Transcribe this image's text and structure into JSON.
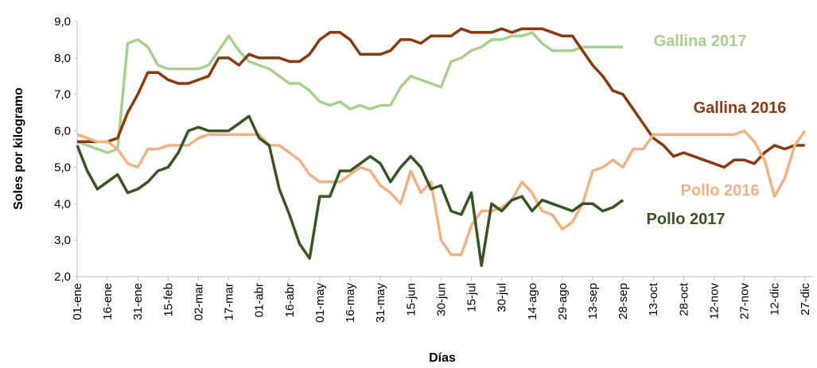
{
  "chart_data": {
    "type": "line",
    "x_label": "Días",
    "y_label": "Soles por kilogramo",
    "x": [
      1,
      6,
      11,
      16,
      21,
      26,
      31,
      36,
      41,
      46,
      51,
      56,
      61,
      66,
      71,
      76,
      81,
      86,
      91,
      96,
      101,
      106,
      111,
      116,
      121,
      126,
      131,
      136,
      141,
      146,
      151,
      156,
      161,
      166,
      171,
      176,
      181,
      186,
      191,
      196,
      201,
      206,
      211,
      216,
      221,
      226,
      231,
      236,
      241,
      246,
      251,
      256,
      261,
      266,
      271,
      276,
      281,
      286,
      291,
      296,
      301,
      306,
      311,
      316,
      321,
      326,
      331,
      336,
      341,
      346,
      351,
      356,
      361
    ],
    "xlim": [
      1,
      365
    ],
    "xticks": [
      {
        "value": 1,
        "label": "01-ene"
      },
      {
        "value": 16,
        "label": "16-ene"
      },
      {
        "value": 31,
        "label": "31-ene"
      },
      {
        "value": 46,
        "label": "15-feb"
      },
      {
        "value": 61,
        "label": "02-mar"
      },
      {
        "value": 76,
        "label": "17-mar"
      },
      {
        "value": 91,
        "label": "01-abr"
      },
      {
        "value": 106,
        "label": "16-abr"
      },
      {
        "value": 121,
        "label": "01-may"
      },
      {
        "value": 136,
        "label": "16-may"
      },
      {
        "value": 151,
        "label": "31-may"
      },
      {
        "value": 166,
        "label": "15-jun"
      },
      {
        "value": 181,
        "label": "30-jun"
      },
      {
        "value": 196,
        "label": "15-jul"
      },
      {
        "value": 211,
        "label": "30-jul"
      },
      {
        "value": 226,
        "label": "14-ago"
      },
      {
        "value": 241,
        "label": "29-ago"
      },
      {
        "value": 256,
        "label": "13-sep"
      },
      {
        "value": 271,
        "label": "28-sep"
      },
      {
        "value": 286,
        "label": "13-oct"
      },
      {
        "value": 301,
        "label": "28-oct"
      },
      {
        "value": 316,
        "label": "12-nov"
      },
      {
        "value": 331,
        "label": "27-nov"
      },
      {
        "value": 346,
        "label": "12-dic"
      },
      {
        "value": 361,
        "label": "27-dic"
      }
    ],
    "ylim": [
      2,
      9
    ],
    "yticks": [
      {
        "value": 2,
        "label": "2,0"
      },
      {
        "value": 3,
        "label": "3,0"
      },
      {
        "value": 4,
        "label": "4,0"
      },
      {
        "value": 5,
        "label": "5,0"
      },
      {
        "value": 6,
        "label": "6,0"
      },
      {
        "value": 7,
        "label": "7,0"
      },
      {
        "value": 8,
        "label": "8,0"
      },
      {
        "value": 9,
        "label": "9,0"
      }
    ],
    "series": [
      {
        "name": "Gallina 2017",
        "color": "#a9d18e",
        "values": [
          5.7,
          5.6,
          5.5,
          5.4,
          5.5,
          8.4,
          8.5,
          8.3,
          7.8,
          7.7,
          7.7,
          7.7,
          7.7,
          7.8,
          8.2,
          8.6,
          8.2,
          7.9,
          7.8,
          7.7,
          7.5,
          7.3,
          7.3,
          7.1,
          6.8,
          6.7,
          6.8,
          6.6,
          6.7,
          6.6,
          6.7,
          6.7,
          7.2,
          7.5,
          7.4,
          7.3,
          7.2,
          7.9,
          8.0,
          8.2,
          8.3,
          8.5,
          8.5,
          8.6,
          8.6,
          8.7,
          8.4,
          8.2,
          8.2,
          8.2,
          8.3,
          8.3,
          8.3,
          8.3,
          8.3,
          null,
          null,
          null,
          null,
          null,
          null,
          null,
          null,
          null,
          null,
          null,
          null,
          null,
          null,
          null,
          null,
          null,
          null
        ]
      },
      {
        "name": "Gallina 2016",
        "color": "#8b3a0f",
        "values": [
          5.7,
          5.7,
          5.7,
          5.7,
          5.8,
          6.5,
          7.0,
          7.6,
          7.6,
          7.4,
          7.3,
          7.3,
          7.4,
          7.5,
          8.0,
          8.0,
          7.8,
          8.1,
          8.0,
          8.0,
          8.0,
          7.9,
          7.9,
          8.1,
          8.5,
          8.7,
          8.7,
          8.5,
          8.1,
          8.1,
          8.1,
          8.2,
          8.5,
          8.5,
          8.4,
          8.6,
          8.6,
          8.6,
          8.8,
          8.7,
          8.7,
          8.7,
          8.8,
          8.7,
          8.8,
          8.8,
          8.8,
          8.7,
          8.6,
          8.6,
          8.2,
          7.8,
          7.5,
          7.1,
          7.0,
          6.6,
          6.2,
          5.8,
          5.6,
          5.3,
          5.4,
          5.3,
          5.2,
          5.1,
          5.0,
          5.2,
          5.2,
          5.1,
          5.4,
          5.6,
          5.5,
          5.6,
          5.6
        ]
      },
      {
        "name": "Pollo 2016",
        "color": "#f4b183",
        "values": [
          5.9,
          5.8,
          5.7,
          5.7,
          5.5,
          5.1,
          5.0,
          5.5,
          5.5,
          5.6,
          5.6,
          5.6,
          5.8,
          5.9,
          5.9,
          5.9,
          5.9,
          5.9,
          5.9,
          5.6,
          5.6,
          5.4,
          5.2,
          4.8,
          4.6,
          4.6,
          4.6,
          4.8,
          5.0,
          4.9,
          4.5,
          4.3,
          4.0,
          4.9,
          4.3,
          4.6,
          3.0,
          2.6,
          2.6,
          3.4,
          3.8,
          3.8,
          3.9,
          4.1,
          4.6,
          4.3,
          3.8,
          3.7,
          3.3,
          3.5,
          4.0,
          4.9,
          5.0,
          5.2,
          5.0,
          5.5,
          5.5,
          5.9,
          5.9,
          5.9,
          5.9,
          5.9,
          5.9,
          5.9,
          5.9,
          5.9,
          6.0,
          5.7,
          5.2,
          4.2,
          4.7,
          5.6,
          6.0
        ]
      },
      {
        "name": "Pollo 2017",
        "color": "#375623",
        "values": [
          5.6,
          4.9,
          4.4,
          4.6,
          4.8,
          4.3,
          4.4,
          4.6,
          4.9,
          5.0,
          5.4,
          6.0,
          6.1,
          6.0,
          6.0,
          6.0,
          6.2,
          6.4,
          5.8,
          5.6,
          4.4,
          3.7,
          2.9,
          2.5,
          4.2,
          4.2,
          4.9,
          4.9,
          5.1,
          5.3,
          5.1,
          4.6,
          5.0,
          5.3,
          5.0,
          4.4,
          4.5,
          3.8,
          3.7,
          4.3,
          2.3,
          4.0,
          3.8,
          4.1,
          4.2,
          3.8,
          4.1,
          4.0,
          3.9,
          3.8,
          4.0,
          4.0,
          3.8,
          3.9,
          4.1,
          null,
          null,
          null,
          null,
          null,
          null,
          null,
          null,
          null,
          null,
          null,
          null,
          null,
          null,
          null,
          null,
          null,
          null
        ]
      }
    ]
  }
}
